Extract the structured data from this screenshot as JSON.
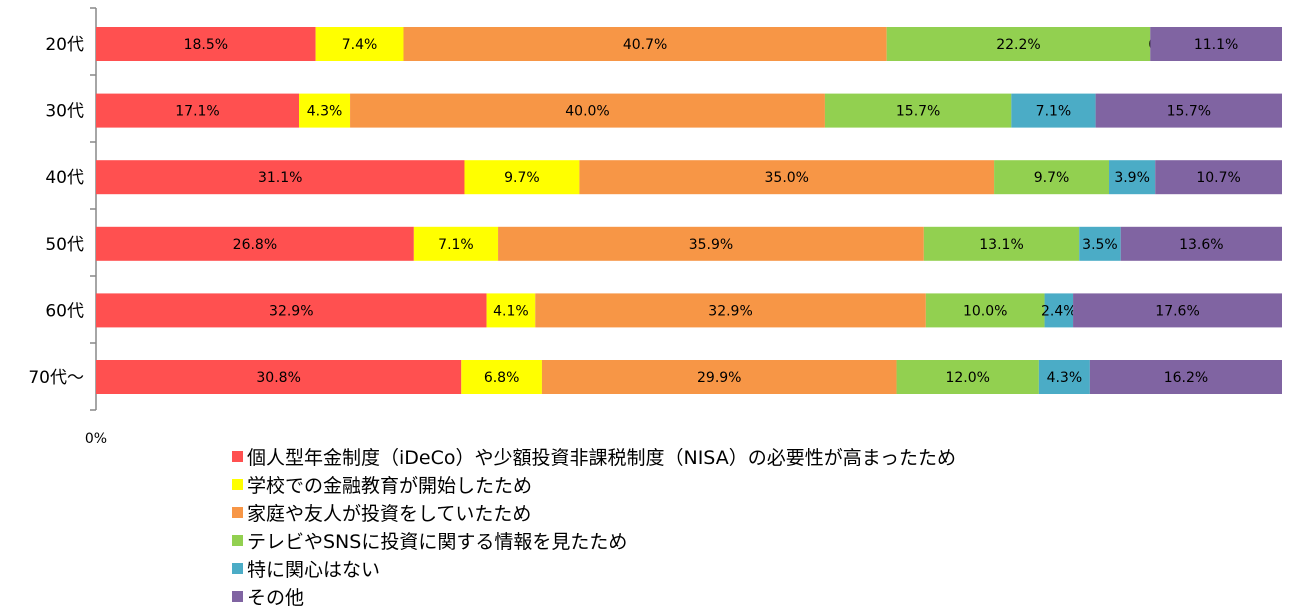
{
  "chart_data": {
    "type": "bar",
    "orientation": "horizontal",
    "stacked": true,
    "percent_stacked": true,
    "categories": [
      "20代",
      "30代",
      "40代",
      "50代",
      "60代",
      "70代～"
    ],
    "x_tick_label": "0%",
    "legend_position": "bottom",
    "grid": false,
    "series": [
      {
        "name": "個人型年金制度（iDeCo）や少額投資非課税制度（NISA）の必要性が高まったため",
        "color": "#FF5050",
        "values": [
          18.5,
          17.1,
          31.1,
          26.8,
          32.9,
          30.8
        ],
        "labels": [
          "18.5%",
          "17.1%",
          "31.1%",
          "26.8%",
          "32.9%",
          "30.8%"
        ]
      },
      {
        "name": "学校での金融教育が開始したため",
        "color": "#FFFF00",
        "values": [
          7.4,
          4.3,
          9.7,
          7.1,
          4.1,
          6.8
        ],
        "labels": [
          "7.4%",
          "4.3%",
          "9.7%",
          "7.1%",
          "4.1%",
          "6.8%"
        ]
      },
      {
        "name": "家庭や友人が投資をしていたため",
        "color": "#F79646",
        "values": [
          40.7,
          40.0,
          35.0,
          35.9,
          32.9,
          29.9
        ],
        "labels": [
          "40.7%",
          "40.0%",
          "35.0%",
          "35.9%",
          "32.9%",
          "29.9%"
        ]
      },
      {
        "name": "テレビやSNSに投資に関する情報を見たため",
        "color": "#92D050",
        "values": [
          22.2,
          15.7,
          9.7,
          13.1,
          10.0,
          12.0
        ],
        "labels": [
          "22.2%",
          "15.7%",
          "9.7%",
          "13.1%",
          "10.0%",
          "12.0%"
        ]
      },
      {
        "name": "特に関心はない",
        "color": "#4BACC6",
        "values": [
          0.0,
          7.1,
          3.9,
          3.5,
          2.4,
          4.3
        ],
        "labels": [
          "0.0%",
          "7.1%",
          "3.9%",
          "3.5%",
          "2.4%",
          "4.3%"
        ]
      },
      {
        "name": "その他",
        "color": "#8064A2",
        "values": [
          11.1,
          15.7,
          10.7,
          13.6,
          17.6,
          16.2
        ],
        "labels": [
          "11.1%",
          "15.7%",
          "10.7%",
          "13.6%",
          "17.6%",
          "16.2%"
        ]
      }
    ]
  }
}
